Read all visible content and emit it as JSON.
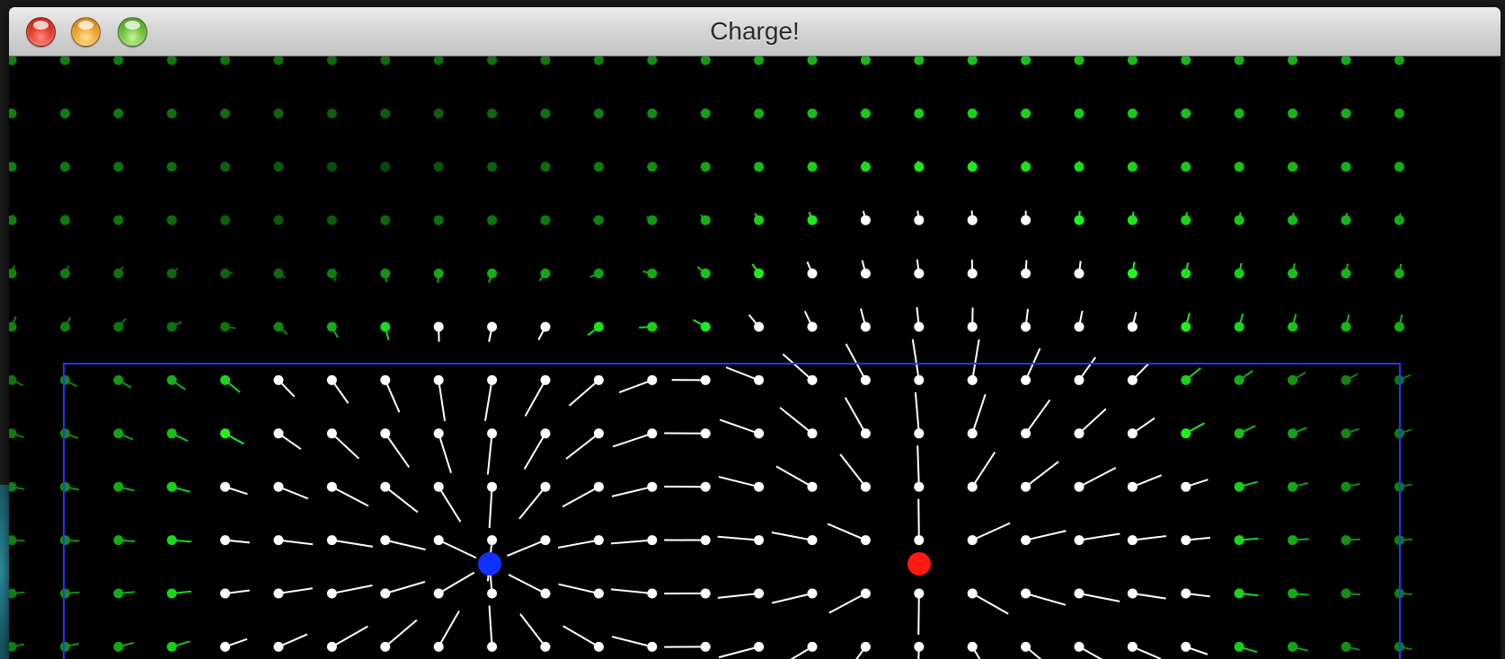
{
  "window": {
    "title": "Charge!",
    "buttons": [
      "close-button",
      "minimize-button",
      "zoom-button"
    ]
  },
  "simulation": {
    "background_color": "#000000",
    "boundary_color": "#1a3cff",
    "strong_vector_color": "#ffffff",
    "field_vector_color": "#22dd22",
    "charges": [
      {
        "name": "negative-charge",
        "color": "#1030ff",
        "sign": "negative"
      },
      {
        "name": "positive-charge",
        "color": "#ff1a10",
        "sign": "positive"
      }
    ]
  }
}
